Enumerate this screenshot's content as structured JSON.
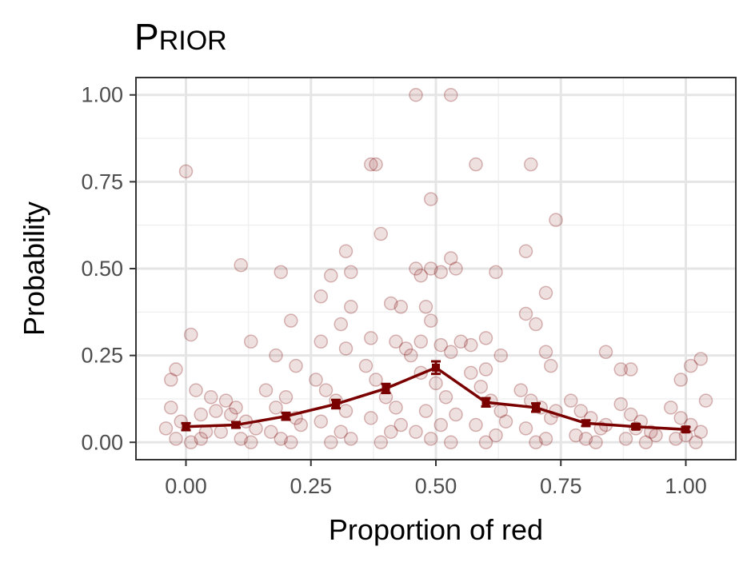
{
  "chart_data": {
    "type": "scatter",
    "title": "Prior",
    "xlabel": "Proportion of red",
    "ylabel": "Probability",
    "xlim": [
      -0.1,
      1.1
    ],
    "ylim": [
      -0.05,
      1.05
    ],
    "x_ticks": [
      "0.00",
      "0.25",
      "0.50",
      "0.75",
      "1.00"
    ],
    "y_ticks": [
      "0.00",
      "0.25",
      "0.50",
      "0.75",
      "1.00"
    ],
    "grid": true,
    "point_color": "#7a0000",
    "line_color": "#7a0000",
    "series": [
      {
        "kind": "mean_line_with_errorbars",
        "x": [
          0.0,
          0.1,
          0.2,
          0.3,
          0.4,
          0.5,
          0.6,
          0.7,
          0.8,
          0.9,
          1.0
        ],
        "y": [
          0.045,
          0.05,
          0.075,
          0.11,
          0.155,
          0.215,
          0.115,
          0.1,
          0.055,
          0.045,
          0.037
        ],
        "err": [
          0.01,
          0.008,
          0.01,
          0.012,
          0.013,
          0.018,
          0.012,
          0.012,
          0.008,
          0.007,
          0.007
        ]
      },
      {
        "kind": "jittered_points",
        "points": [
          [
            0.0,
            0.78
          ],
          [
            0.01,
            0.31
          ],
          [
            0.11,
            0.51
          ],
          [
            0.13,
            0.29
          ],
          [
            0.19,
            0.49
          ],
          [
            0.18,
            0.25
          ],
          [
            0.21,
            0.35
          ],
          [
            0.22,
            0.22
          ],
          [
            0.27,
            0.42
          ],
          [
            0.29,
            0.48
          ],
          [
            0.31,
            0.34
          ],
          [
            0.32,
            0.55
          ],
          [
            0.33,
            0.49
          ],
          [
            0.33,
            0.39
          ],
          [
            0.27,
            0.29
          ],
          [
            0.32,
            0.27
          ],
          [
            0.37,
            0.8
          ],
          [
            0.38,
            0.8
          ],
          [
            0.39,
            0.6
          ],
          [
            0.41,
            0.4
          ],
          [
            0.43,
            0.39
          ],
          [
            0.37,
            0.3
          ],
          [
            0.42,
            0.29
          ],
          [
            0.44,
            0.27
          ],
          [
            0.46,
            1.0
          ],
          [
            0.53,
            1.0
          ],
          [
            0.49,
            0.7
          ],
          [
            0.46,
            0.5
          ],
          [
            0.47,
            0.48
          ],
          [
            0.49,
            0.5
          ],
          [
            0.51,
            0.49
          ],
          [
            0.53,
            0.53
          ],
          [
            0.54,
            0.5
          ],
          [
            0.48,
            0.39
          ],
          [
            0.49,
            0.35
          ],
          [
            0.47,
            0.29
          ],
          [
            0.51,
            0.28
          ],
          [
            0.53,
            0.26
          ],
          [
            0.55,
            0.29
          ],
          [
            0.58,
            0.8
          ],
          [
            0.62,
            0.49
          ],
          [
            0.6,
            0.3
          ],
          [
            0.57,
            0.28
          ],
          [
            0.63,
            0.25
          ],
          [
            0.6,
            0.21
          ],
          [
            0.68,
            0.55
          ],
          [
            0.69,
            0.8
          ],
          [
            0.7,
            0.34
          ],
          [
            0.68,
            0.37
          ],
          [
            0.72,
            0.43
          ],
          [
            0.72,
            0.26
          ],
          [
            0.74,
            0.64
          ],
          [
            0.73,
            0.22
          ],
          [
            0.84,
            0.26
          ],
          [
            0.87,
            0.21
          ],
          [
            0.89,
            0.21
          ],
          [
            0.99,
            0.18
          ],
          [
            1.03,
            0.24
          ],
          [
            1.01,
            0.22
          ],
          [
            -0.03,
            0.18
          ],
          [
            -0.02,
            0.21
          ],
          [
            0.02,
            0.15
          ],
          [
            0.05,
            0.13
          ],
          [
            -0.03,
            0.1
          ],
          [
            0.03,
            0.08
          ],
          [
            -0.01,
            0.06
          ],
          [
            0.04,
            0.03
          ],
          [
            -0.02,
            0.01
          ],
          [
            0.01,
            0.0
          ],
          [
            0.03,
            0.01
          ],
          [
            -0.04,
            0.04
          ],
          [
            0.06,
            0.09
          ],
          [
            0.08,
            0.12
          ],
          [
            0.1,
            0.1
          ],
          [
            0.12,
            0.06
          ],
          [
            0.07,
            0.03
          ],
          [
            0.11,
            0.01
          ],
          [
            0.13,
            0.0
          ],
          [
            0.09,
            0.08
          ],
          [
            0.14,
            0.04
          ],
          [
            0.16,
            0.15
          ],
          [
            0.18,
            0.1
          ],
          [
            0.2,
            0.13
          ],
          [
            0.22,
            0.07
          ],
          [
            0.17,
            0.03
          ],
          [
            0.21,
            0.0
          ],
          [
            0.23,
            0.05
          ],
          [
            0.19,
            0.01
          ],
          [
            0.26,
            0.18
          ],
          [
            0.28,
            0.15
          ],
          [
            0.3,
            0.12
          ],
          [
            0.32,
            0.09
          ],
          [
            0.27,
            0.06
          ],
          [
            0.31,
            0.03
          ],
          [
            0.29,
            0.0
          ],
          [
            0.33,
            0.01
          ],
          [
            0.36,
            0.22
          ],
          [
            0.38,
            0.18
          ],
          [
            0.4,
            0.13
          ],
          [
            0.42,
            0.1
          ],
          [
            0.37,
            0.07
          ],
          [
            0.41,
            0.03
          ],
          [
            0.39,
            0.0
          ],
          [
            0.43,
            0.05
          ],
          [
            0.45,
            0.25
          ],
          [
            0.47,
            0.2
          ],
          [
            0.5,
            0.17
          ],
          [
            0.52,
            0.13
          ],
          [
            0.48,
            0.09
          ],
          [
            0.51,
            0.05
          ],
          [
            0.49,
            0.01
          ],
          [
            0.53,
            0.0
          ],
          [
            0.46,
            0.03
          ],
          [
            0.54,
            0.08
          ],
          [
            0.57,
            0.2
          ],
          [
            0.59,
            0.16
          ],
          [
            0.61,
            0.12
          ],
          [
            0.63,
            0.09
          ],
          [
            0.58,
            0.05
          ],
          [
            0.62,
            0.02
          ],
          [
            0.6,
            0.0
          ],
          [
            0.64,
            0.06
          ],
          [
            0.67,
            0.15
          ],
          [
            0.69,
            0.12
          ],
          [
            0.71,
            0.1
          ],
          [
            0.73,
            0.07
          ],
          [
            0.68,
            0.04
          ],
          [
            0.72,
            0.01
          ],
          [
            0.7,
            0.0
          ],
          [
            0.74,
            0.09
          ],
          [
            0.77,
            0.12
          ],
          [
            0.79,
            0.09
          ],
          [
            0.81,
            0.07
          ],
          [
            0.83,
            0.04
          ],
          [
            0.78,
            0.02
          ],
          [
            0.82,
            0.0
          ],
          [
            0.8,
            0.01
          ],
          [
            0.84,
            0.05
          ],
          [
            0.87,
            0.11
          ],
          [
            0.89,
            0.08
          ],
          [
            0.91,
            0.06
          ],
          [
            0.93,
            0.03
          ],
          [
            0.88,
            0.01
          ],
          [
            0.92,
            0.0
          ],
          [
            0.9,
            0.04
          ],
          [
            0.94,
            0.02
          ],
          [
            0.97,
            0.1
          ],
          [
            0.99,
            0.07
          ],
          [
            1.01,
            0.05
          ],
          [
            1.03,
            0.03
          ],
          [
            0.98,
            0.01
          ],
          [
            1.02,
            0.0
          ],
          [
            1.0,
            0.02
          ],
          [
            1.04,
            0.12
          ]
        ]
      }
    ]
  }
}
